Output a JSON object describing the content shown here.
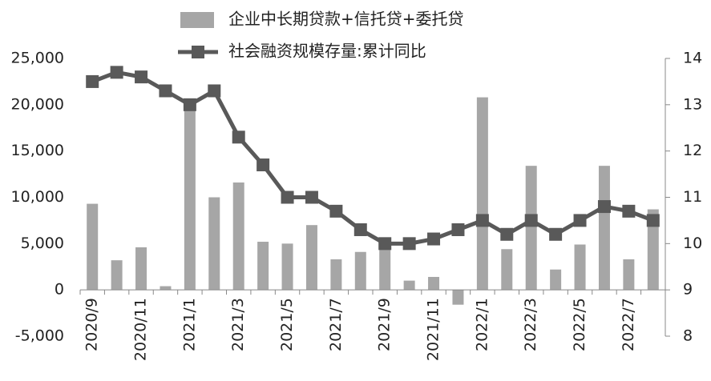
{
  "chart_data": {
    "type": "bar-line",
    "categories": [
      "2020/9",
      null,
      "2020/11",
      null,
      "2021/1",
      null,
      "2021/3",
      null,
      "2021/5",
      null,
      "2021/7",
      null,
      "2021/9",
      null,
      "2021/11",
      null,
      "2022/1",
      null,
      "2022/3",
      null,
      "2022/5",
      null,
      "2022/7",
      null
    ],
    "series": [
      {
        "name": "企业中长期贷款+信托贷+委托贷",
        "type": "bar",
        "color": "#a6a6a6",
        "values": [
          9300,
          3200,
          4600,
          400,
          19500,
          10000,
          11600,
          5200,
          5000,
          7000,
          3300,
          4100,
          4400,
          1000,
          1400,
          -1600,
          20800,
          4400,
          13400,
          2200,
          4900,
          13400,
          3300,
          8700
        ]
      },
      {
        "name": "社会融资规模存量:累计同比",
        "type": "line",
        "axis": "y2",
        "color": "#595959",
        "values": [
          13.5,
          13.7,
          13.6,
          13.3,
          13.0,
          13.3,
          12.3,
          11.7,
          11.0,
          11.0,
          10.7,
          10.3,
          10.0,
          10.0,
          10.1,
          10.3,
          10.5,
          10.2,
          10.5,
          10.2,
          10.5,
          10.8,
          10.7,
          10.5
        ]
      }
    ],
    "ylim": [
      -5000,
      25000
    ],
    "yticks": [
      {
        "value": -5000,
        "label": "-5,000"
      },
      0,
      {
        "value": 5000,
        "label": "5,000"
      },
      {
        "value": 10000,
        "label": "10,000"
      },
      {
        "value": 15000,
        "label": "15,000"
      },
      {
        "value": 20000,
        "label": "20,000"
      },
      {
        "value": 25000,
        "label": "25,000"
      }
    ],
    "y2lim": [
      8,
      14
    ],
    "y2ticks": [
      8,
      9,
      10,
      11,
      12,
      13,
      14
    ],
    "grid": false
  }
}
